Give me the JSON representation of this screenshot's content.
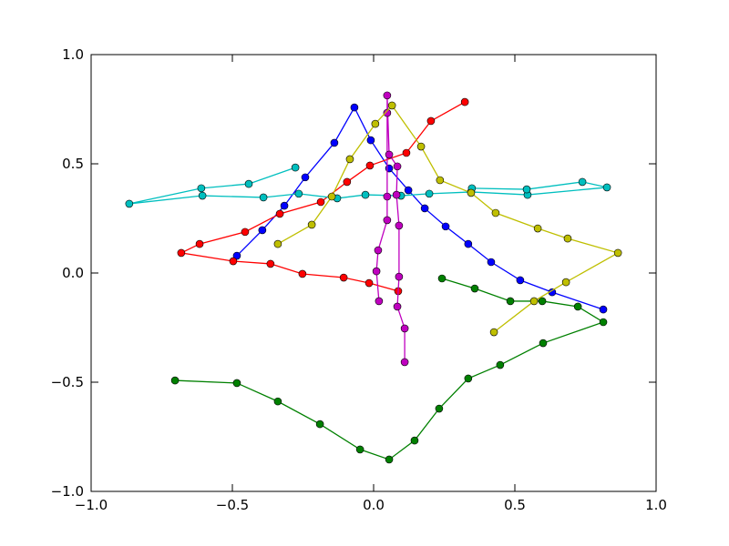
{
  "chart_data": {
    "type": "line",
    "xlim": [
      -1,
      1
    ],
    "ylim": [
      -1,
      1
    ],
    "xticks": [
      {
        "value": -1,
        "label": "−1.0"
      },
      {
        "value": -0.5,
        "label": "−0.5"
      },
      {
        "value": 0,
        "label": "0.0"
      },
      {
        "value": 0.5,
        "label": "0.5"
      },
      {
        "value": 1,
        "label": "1.0"
      }
    ],
    "yticks": [
      {
        "value": -1,
        "label": "−1.0"
      },
      {
        "value": -0.5,
        "label": "−0.5"
      },
      {
        "value": 0,
        "label": "0.0"
      },
      {
        "value": 0.5,
        "label": "0.5"
      },
      {
        "value": 1,
        "label": "1.0"
      }
    ],
    "series": [
      {
        "color": "#0000ff",
        "x": [
          -0.484,
          -0.394,
          -0.316,
          -0.242,
          -0.139,
          -0.068,
          -0.01,
          0.055,
          0.123,
          0.181,
          0.255,
          0.335,
          0.416,
          0.519,
          0.632,
          0.813
        ],
        "values": [
          0.079,
          0.196,
          0.308,
          0.438,
          0.596,
          0.758,
          0.608,
          0.479,
          0.379,
          0.296,
          0.213,
          0.133,
          0.05,
          -0.033,
          -0.088,
          -0.167
        ]
      },
      {
        "color": "#008000",
        "x": [
          -0.703,
          -0.484,
          -0.339,
          -0.19,
          -0.048,
          0.055,
          0.145,
          0.232,
          0.335,
          0.448,
          0.6,
          0.813,
          0.723,
          0.597,
          0.484,
          0.358,
          0.242
        ],
        "values": [
          -0.492,
          -0.504,
          -0.588,
          -0.692,
          -0.808,
          -0.854,
          -0.767,
          -0.621,
          -0.483,
          -0.421,
          -0.321,
          -0.225,
          -0.154,
          -0.129,
          -0.129,
          -0.071,
          -0.025
        ]
      },
      {
        "color": "#ff0000",
        "x": [
          0.323,
          0.203,
          0.116,
          -0.013,
          -0.094,
          -0.187,
          -0.332,
          -0.455,
          -0.616,
          -0.681,
          -0.497,
          -0.365,
          -0.252,
          -0.106,
          -0.016,
          0.087
        ],
        "values": [
          0.783,
          0.696,
          0.55,
          0.492,
          0.417,
          0.325,
          0.271,
          0.188,
          0.133,
          0.092,
          0.054,
          0.042,
          -0.004,
          -0.021,
          -0.046,
          -0.083
        ]
      },
      {
        "color": "#00bfbf",
        "x": [
          -0.277,
          -0.442,
          -0.61,
          -0.865,
          -0.606,
          -0.39,
          -0.265,
          -0.129,
          -0.029,
          0.097,
          0.197,
          0.345,
          0.545,
          0.826,
          0.739,
          0.542,
          0.348
        ],
        "values": [
          0.483,
          0.408,
          0.388,
          0.317,
          0.354,
          0.346,
          0.363,
          0.342,
          0.358,
          0.354,
          0.363,
          0.371,
          0.358,
          0.392,
          0.417,
          0.383,
          0.388
        ]
      },
      {
        "color": "#bf00bf",
        "x": [
          0.11,
          0.11,
          0.084,
          0.09,
          0.09,
          0.081,
          0.084,
          0.055,
          0.048,
          0.048,
          0.048,
          0.048,
          0.016,
          0.01,
          0.019
        ],
        "values": [
          -0.408,
          -0.254,
          -0.154,
          -0.017,
          0.217,
          0.358,
          0.488,
          0.542,
          0.813,
          0.733,
          0.35,
          0.242,
          0.104,
          0.008,
          -0.129
        ]
      },
      {
        "color": "#bfbf00",
        "x": [
          -0.339,
          -0.219,
          -0.148,
          -0.084,
          0.006,
          0.065,
          0.168,
          0.235,
          0.345,
          0.432,
          0.581,
          0.687,
          0.865,
          0.681,
          0.568,
          0.426
        ],
        "values": [
          0.133,
          0.221,
          0.35,
          0.521,
          0.683,
          0.767,
          0.579,
          0.425,
          0.367,
          0.275,
          0.204,
          0.158,
          0.092,
          -0.042,
          -0.129,
          -0.271
        ]
      }
    ]
  }
}
